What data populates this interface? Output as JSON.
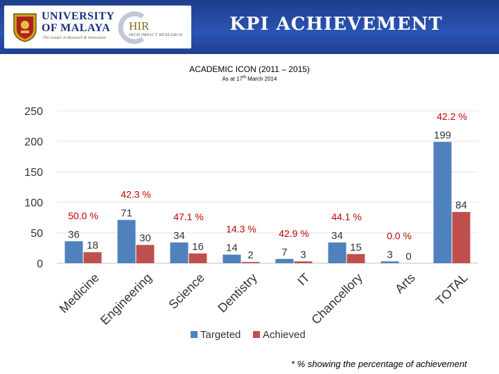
{
  "header": {
    "title": "KPI ACHIEVEMENT",
    "university_line1": "UNIVERSITY",
    "university_line2": "OF MALAYA",
    "university_tagline": "The Leader in Research & Innovation",
    "hir_name": "HIR",
    "hir_sub": "HIGH IMPACT RESEARCH",
    "colors": {
      "banner": "#2a55b3",
      "title": "#ffffff"
    }
  },
  "chart_data": {
    "type": "bar",
    "title": "ACADEMIC ICON (2011 – 2015)",
    "subtitle_prefix": "As at 17",
    "subtitle_sup": "th",
    "subtitle_suffix": " March 2014",
    "categories": [
      "Medicine",
      "Engineering",
      "Science",
      "Dentistry",
      "IT",
      "Chancellory",
      "Arts",
      "TOTAL"
    ],
    "series": [
      {
        "name": "Targeted",
        "color": "#4f81bd",
        "values": [
          36,
          71,
          34,
          14,
          7,
          34,
          3,
          199
        ]
      },
      {
        "name": "Achieved",
        "color": "#c0504d",
        "values": [
          18,
          30,
          16,
          2,
          3,
          15,
          0,
          84
        ]
      }
    ],
    "percentages": [
      "50.0 %",
      "42.3 %",
      "47.1 %",
      "14.3 %",
      "42.9 %",
      "44.1 %",
      "0.0 %",
      "42.2 %"
    ],
    "percent_color": "#c00000",
    "ylim": [
      0,
      250
    ],
    "yticks": [
      0,
      50,
      100,
      150,
      200,
      250
    ],
    "grid": true,
    "legend": "bottom"
  },
  "footnote": "* % showing the percentage of achievement"
}
